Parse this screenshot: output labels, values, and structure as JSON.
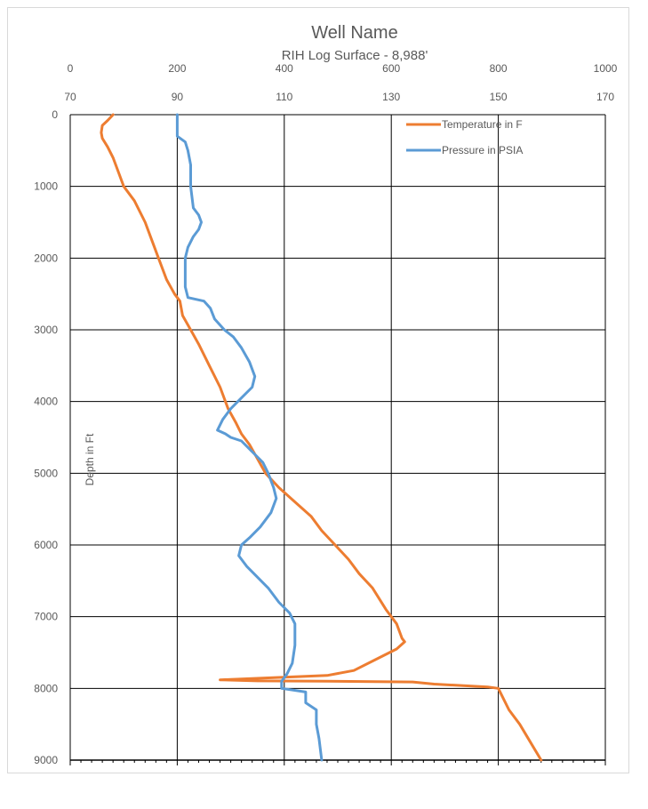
{
  "chart_data": {
    "type": "line",
    "title": "Well Name",
    "subtitle": "RIH Log Surface - 8,988'",
    "ylabel": "Depth in Ft",
    "y_axis": {
      "min": 0,
      "max": 9000,
      "inverted": true,
      "ticks": [
        0,
        1000,
        2000,
        3000,
        4000,
        5000,
        6000,
        7000,
        8000,
        9000
      ],
      "tick_labels": [
        "0",
        "1000",
        "2000",
        "3000",
        "4000",
        "5000",
        "6000",
        "7000",
        "8000",
        "9000"
      ]
    },
    "x_axis_pressure": {
      "min": 0,
      "max": 1000,
      "ticks": [
        0,
        200,
        400,
        600,
        800,
        1000
      ],
      "tick_labels": [
        "0",
        "200",
        "400",
        "600",
        "800",
        "1000"
      ]
    },
    "x_axis_temperature": {
      "min": 70,
      "max": 170,
      "ticks": [
        70,
        90,
        110,
        130,
        150,
        170
      ],
      "tick_labels": [
        "70",
        "90",
        "110",
        "130",
        "150",
        "170"
      ]
    },
    "grid": true,
    "legend_position": "top-right",
    "series": [
      {
        "name": "Temperature in F",
        "color": "#ED7D31",
        "axis": "temperature",
        "points": [
          [
            78,
            0
          ],
          [
            77,
            80
          ],
          [
            76,
            150
          ],
          [
            75.8,
            250
          ],
          [
            76,
            330
          ],
          [
            77,
            450
          ],
          [
            78,
            600
          ],
          [
            79,
            800
          ],
          [
            80,
            1000
          ],
          [
            82,
            1200
          ],
          [
            84,
            1500
          ],
          [
            85.5,
            1800
          ],
          [
            86.5,
            2000
          ],
          [
            88,
            2300
          ],
          [
            89.5,
            2500
          ],
          [
            90.5,
            2600
          ],
          [
            91,
            2800
          ],
          [
            92.5,
            3000
          ],
          [
            94,
            3200
          ],
          [
            96,
            3500
          ],
          [
            98,
            3800
          ],
          [
            99.5,
            4100
          ],
          [
            101,
            4300
          ],
          [
            102,
            4450
          ],
          [
            103.5,
            4600
          ],
          [
            105,
            4800
          ],
          [
            106.5,
            5000
          ],
          [
            109,
            5200
          ],
          [
            112,
            5400
          ],
          [
            115,
            5600
          ],
          [
            117,
            5800
          ],
          [
            119.5,
            6000
          ],
          [
            122,
            6200
          ],
          [
            124,
            6400
          ],
          [
            126.5,
            6600
          ],
          [
            129,
            6900
          ],
          [
            131,
            7100
          ],
          [
            132,
            7300
          ],
          [
            132.5,
            7350
          ],
          [
            131,
            7450
          ],
          [
            127,
            7600
          ],
          [
            123,
            7750
          ],
          [
            118,
            7820
          ],
          [
            105,
            7860
          ],
          [
            98,
            7880
          ],
          [
            105,
            7895
          ],
          [
            118,
            7900
          ],
          [
            134,
            7910
          ],
          [
            138,
            7940
          ],
          [
            148,
            7980
          ],
          [
            150,
            8000
          ],
          [
            151,
            8150
          ],
          [
            152,
            8300
          ],
          [
            154,
            8500
          ],
          [
            156,
            8750
          ],
          [
            158,
            9000
          ]
        ]
      },
      {
        "name": "Pressure in PSIA",
        "color": "#5B9BD5",
        "axis": "pressure",
        "points": [
          [
            200,
            0
          ],
          [
            200,
            300
          ],
          [
            215,
            380
          ],
          [
            220,
            500
          ],
          [
            225,
            700
          ],
          [
            225,
            1000
          ],
          [
            230,
            1300
          ],
          [
            240,
            1400
          ],
          [
            245,
            1500
          ],
          [
            240,
            1600
          ],
          [
            230,
            1700
          ],
          [
            220,
            1850
          ],
          [
            215,
            2000
          ],
          [
            215,
            2200
          ],
          [
            215,
            2400
          ],
          [
            220,
            2550
          ],
          [
            250,
            2600
          ],
          [
            262,
            2700
          ],
          [
            270,
            2850
          ],
          [
            288,
            3000
          ],
          [
            305,
            3100
          ],
          [
            320,
            3250
          ],
          [
            335,
            3450
          ],
          [
            345,
            3650
          ],
          [
            340,
            3800
          ],
          [
            320,
            3950
          ],
          [
            300,
            4100
          ],
          [
            285,
            4250
          ],
          [
            275,
            4400
          ],
          [
            290,
            4450
          ],
          [
            300,
            4500
          ],
          [
            320,
            4550
          ],
          [
            340,
            4700
          ],
          [
            360,
            4850
          ],
          [
            370,
            5000
          ],
          [
            380,
            5200
          ],
          [
            385,
            5350
          ],
          [
            375,
            5550
          ],
          [
            355,
            5750
          ],
          [
            335,
            5900
          ],
          [
            320,
            6000
          ],
          [
            315,
            6150
          ],
          [
            330,
            6300
          ],
          [
            350,
            6450
          ],
          [
            370,
            6600
          ],
          [
            390,
            6800
          ],
          [
            410,
            6950
          ],
          [
            420,
            7100
          ],
          [
            420,
            7400
          ],
          [
            415,
            7650
          ],
          [
            405,
            7800
          ],
          [
            395,
            7900
          ],
          [
            395,
            8000
          ],
          [
            440,
            8050
          ],
          [
            440,
            8200
          ],
          [
            460,
            8300
          ],
          [
            460,
            8500
          ],
          [
            465,
            8700
          ],
          [
            470,
            9000
          ]
        ]
      }
    ]
  }
}
